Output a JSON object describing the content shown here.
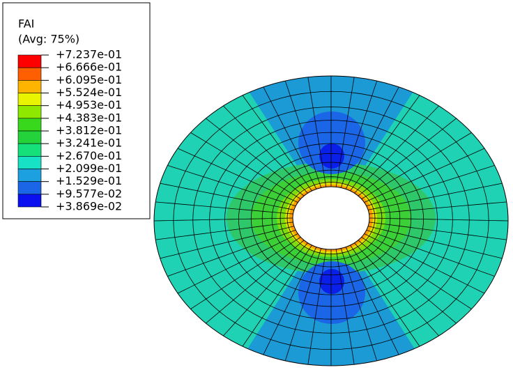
{
  "legend": {
    "title": "FAI",
    "subtitle": "(Avg: 75%)",
    "labels": [
      "+7.237e-01",
      "+6.666e-01",
      "+6.095e-01",
      "+5.524e-01",
      "+4.953e-01",
      "+4.383e-01",
      "+3.812e-01",
      "+3.241e-01",
      "+2.670e-01",
      "+2.099e-01",
      "+1.529e-01",
      "+9.577e-02",
      "+3.869e-02"
    ],
    "colors": [
      "#ff0000",
      "#ff5f00",
      "#ffb400",
      "#e9f500",
      "#8fe800",
      "#38d81c",
      "#24d23c",
      "#16e07a",
      "#18e2c6",
      "#1ca0e0",
      "#1a66e6",
      "#0a10f0"
    ]
  }
}
